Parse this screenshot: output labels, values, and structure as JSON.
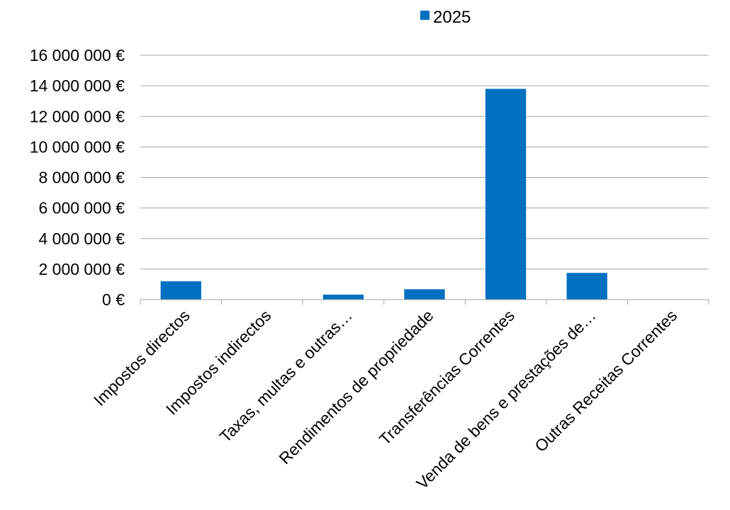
{
  "chart_data": {
    "type": "bar",
    "categories": [
      "Impostos directos",
      "Impostos indirectos",
      "Taxas, multas e outras…",
      "Rendimentos de propriedade",
      "Transferências Correntes",
      "Venda de bens e prestações de…",
      "Outras Receitas Correntes"
    ],
    "series": [
      {
        "name": "2025",
        "values": [
          1200000,
          0,
          330000,
          680000,
          13800000,
          1750000,
          0
        ]
      }
    ],
    "ylim": [
      0,
      16000000
    ],
    "yticks": [
      0,
      2000000,
      4000000,
      6000000,
      8000000,
      10000000,
      12000000,
      14000000,
      16000000
    ],
    "ytick_labels": [
      "0 €",
      "2 000 000 €",
      "4 000 000 €",
      "6 000 000 €",
      "8 000 000 €",
      "10 000 000 €",
      "12 000 000 €",
      "14 000 000 €",
      "16 000 000 €"
    ],
    "grid": true,
    "legend_position": "top",
    "colors": {
      "bar": "#0070C0",
      "grid": "#A6A6A6",
      "axis": "#A6A6A6"
    }
  }
}
